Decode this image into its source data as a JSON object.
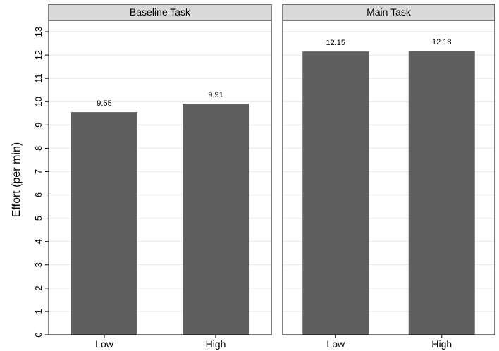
{
  "chart_data": {
    "type": "bar",
    "ylabel": "Effort (per min)",
    "ylim": [
      0,
      13
    ],
    "yticks": [
      "0",
      "1",
      "2",
      "3",
      "4",
      "5",
      "6",
      "7",
      "8",
      "9",
      "10",
      "11",
      "12",
      "13"
    ],
    "grid": true,
    "bar_color": "#5f5f5f",
    "header_color": "#d9d9d9",
    "panels": [
      {
        "title": "Baseline Task",
        "categories": [
          "Low",
          "High"
        ],
        "values": [
          9.55,
          9.91
        ],
        "value_labels": [
          "9.55",
          "9.91"
        ]
      },
      {
        "title": "Main Task",
        "categories": [
          "Low",
          "High"
        ],
        "values": [
          12.15,
          12.18
        ],
        "value_labels": [
          "12.15",
          "12.18"
        ]
      }
    ]
  }
}
